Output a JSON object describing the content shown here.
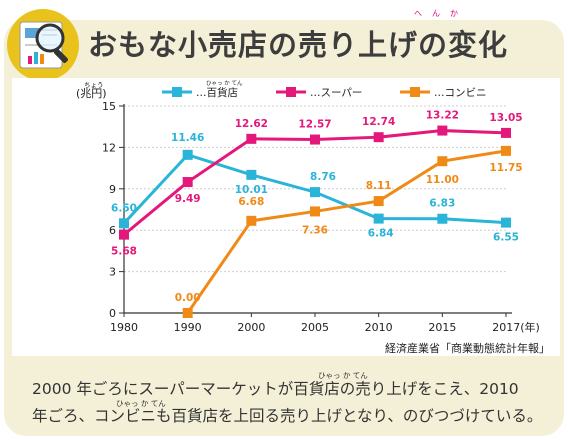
{
  "title": "おもな小売店の売り上げの変化",
  "title_ruby": "へんか",
  "source": "経済産業省「商業動態統計年報」",
  "caption_lines": [
    "2000 年ごろにスーパーマーケットが百貨店の売り上げをこえ、2010",
    "年ごろ、コンビニも百貨店を上回る売り上げとなり、のびつづけている。"
  ],
  "caption_ruby": [
    "ひゃっ か てん",
    "ひゃっ か てん"
  ],
  "colors": {
    "department": "#29b4d8",
    "super": "#e4187b",
    "convenience": "#f08a16",
    "panel": "#f4f0d8",
    "title": "#3d3d3d"
  },
  "icons": [
    "magnifier-chart-icon"
  ],
  "chart_data": {
    "type": "line",
    "x": [
      1980,
      1990,
      2000,
      2005,
      2010,
      2015,
      2017
    ],
    "x_tick_labels": [
      "1980",
      "1990",
      "2000",
      "2005",
      "2010",
      "2015",
      "2017(年)"
    ],
    "ylabel": "(兆円)",
    "ylabel_ruby": "ちょう",
    "ylim": [
      0,
      15
    ],
    "yticks": [
      0,
      3,
      6,
      9,
      12,
      15
    ],
    "grid": "horizontal",
    "legend_position": "top",
    "series": [
      {
        "key": "department",
        "name": "…百貨店",
        "name_ruby": "ひゃっ か てん",
        "x": [
          1980,
          1990,
          2000,
          2005,
          2010,
          2015,
          2017
        ],
        "values": [
          6.5,
          11.46,
          10.01,
          8.76,
          6.84,
          6.83,
          6.55
        ],
        "labels": [
          "6.50",
          "11.46",
          "10.01",
          "8.76",
          "6.84",
          "6.83",
          "6.55"
        ]
      },
      {
        "key": "super",
        "name": "…スーパー",
        "x": [
          1980,
          1990,
          2000,
          2005,
          2010,
          2015,
          2017
        ],
        "values": [
          5.68,
          9.49,
          12.62,
          12.57,
          12.74,
          13.22,
          13.05
        ],
        "labels": [
          "5.68",
          "9.49",
          "12.62",
          "12.57",
          "12.74",
          "13.22",
          "13.05"
        ]
      },
      {
        "key": "convenience",
        "name": "…コンビニ",
        "x": [
          1990,
          2000,
          2005,
          2010,
          2015,
          2017
        ],
        "values": [
          0.0,
          6.68,
          7.36,
          8.11,
          11.0,
          11.75
        ],
        "labels": [
          "0.00",
          "6.68",
          "7.36",
          "8.11",
          "11.00",
          "11.75"
        ]
      }
    ]
  }
}
